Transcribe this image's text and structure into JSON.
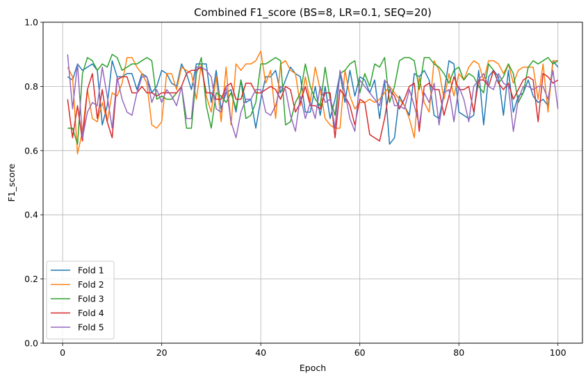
{
  "chart_data": {
    "type": "line",
    "title": "Combined F1_score (BS=8, LR=0.1, SEQ=20)",
    "xlabel": "Epoch",
    "ylabel": "F1_score",
    "xlim": [
      -3.95,
      104.95
    ],
    "ylim": [
      0.0,
      1.0
    ],
    "xticks": [
      0,
      20,
      40,
      60,
      80,
      100
    ],
    "yticks": [
      0.0,
      0.2,
      0.4,
      0.6,
      0.8,
      1.0
    ],
    "xtick_labels": [
      "0",
      "20",
      "40",
      "60",
      "80",
      "100"
    ],
    "ytick_labels": [
      "0.0",
      "0.2",
      "0.4",
      "0.6",
      "0.8",
      "1.0"
    ],
    "grid": true,
    "legend_position": "lower-left",
    "x": [
      1,
      2,
      3,
      4,
      5,
      6,
      7,
      8,
      9,
      10,
      11,
      12,
      13,
      14,
      15,
      16,
      17,
      18,
      19,
      20,
      21,
      22,
      23,
      24,
      25,
      26,
      27,
      28,
      29,
      30,
      31,
      32,
      33,
      34,
      35,
      36,
      37,
      38,
      39,
      40,
      41,
      42,
      43,
      44,
      45,
      46,
      47,
      48,
      49,
      50,
      51,
      52,
      53,
      54,
      55,
      56,
      57,
      58,
      59,
      60,
      61,
      62,
      63,
      64,
      65,
      66,
      67,
      68,
      69,
      70,
      71,
      72,
      73,
      74,
      75,
      76,
      77,
      78,
      79,
      80,
      81,
      82,
      83,
      84,
      85,
      86,
      87,
      88,
      89,
      90,
      91,
      92,
      93,
      94,
      95,
      96,
      97,
      98,
      99,
      100
    ],
    "series": [
      {
        "name": "Fold 1",
        "color": "#1f77b4",
        "values": [
          0.83,
          0.82,
          0.87,
          0.85,
          0.86,
          0.87,
          0.85,
          0.68,
          0.74,
          0.88,
          0.83,
          0.83,
          0.84,
          0.84,
          0.79,
          0.84,
          0.83,
          0.78,
          0.8,
          0.85,
          0.84,
          0.81,
          0.8,
          0.87,
          0.84,
          0.79,
          0.87,
          0.87,
          0.87,
          0.75,
          0.85,
          0.73,
          0.78,
          0.79,
          0.72,
          0.82,
          0.75,
          0.76,
          0.67,
          0.76,
          0.83,
          0.83,
          0.85,
          0.78,
          0.82,
          0.86,
          0.84,
          0.83,
          0.72,
          0.72,
          0.8,
          0.71,
          0.8,
          0.7,
          0.76,
          0.84,
          0.75,
          0.85,
          0.77,
          0.83,
          0.82,
          0.78,
          0.82,
          0.7,
          0.82,
          0.62,
          0.64,
          0.77,
          0.74,
          0.71,
          0.84,
          0.83,
          0.85,
          0.82,
          0.71,
          0.7,
          0.78,
          0.88,
          0.87,
          0.72,
          0.71,
          0.7,
          0.71,
          0.85,
          0.68,
          0.83,
          0.85,
          0.83,
          0.71,
          0.85,
          0.72,
          0.77,
          0.78,
          0.82,
          0.77,
          0.75,
          0.76,
          0.74,
          0.88,
          0.86
        ]
      },
      {
        "name": "Fold 2",
        "color": "#ff7f0e",
        "values": [
          0.86,
          0.83,
          0.59,
          0.66,
          0.79,
          0.7,
          0.69,
          0.75,
          0.69,
          0.78,
          0.77,
          0.81,
          0.89,
          0.89,
          0.86,
          0.84,
          0.81,
          0.68,
          0.67,
          0.69,
          0.84,
          0.84,
          0.79,
          0.86,
          0.85,
          0.84,
          0.76,
          0.87,
          0.77,
          0.72,
          0.83,
          0.69,
          0.86,
          0.68,
          0.87,
          0.85,
          0.87,
          0.87,
          0.88,
          0.91,
          0.81,
          0.85,
          0.7,
          0.87,
          0.88,
          0.85,
          0.84,
          0.74,
          0.83,
          0.75,
          0.86,
          0.79,
          0.7,
          0.68,
          0.67,
          0.67,
          0.85,
          0.77,
          0.73,
          0.75,
          0.75,
          0.76,
          0.75,
          0.76,
          0.78,
          0.8,
          0.78,
          0.76,
          0.74,
          0.7,
          0.64,
          0.83,
          0.75,
          0.72,
          0.88,
          0.85,
          0.76,
          0.84,
          0.77,
          0.84,
          0.82,
          0.86,
          0.88,
          0.87,
          0.82,
          0.88,
          0.88,
          0.87,
          0.84,
          0.87,
          0.81,
          0.85,
          0.86,
          0.86,
          0.86,
          0.76,
          0.87,
          0.72,
          0.88,
          0.88
        ]
      },
      {
        "name": "Fold 3",
        "color": "#2ca02c",
        "values": [
          0.67,
          0.67,
          0.62,
          0.84,
          0.89,
          0.88,
          0.85,
          0.87,
          0.86,
          0.9,
          0.89,
          0.85,
          0.86,
          0.87,
          0.87,
          0.88,
          0.89,
          0.88,
          0.76,
          0.77,
          0.76,
          0.76,
          0.78,
          0.8,
          0.67,
          0.67,
          0.84,
          0.89,
          0.74,
          0.67,
          0.78,
          0.77,
          0.75,
          0.78,
          0.73,
          0.82,
          0.7,
          0.71,
          0.75,
          0.87,
          0.87,
          0.88,
          0.89,
          0.88,
          0.68,
          0.69,
          0.75,
          0.78,
          0.87,
          0.8,
          0.76,
          0.74,
          0.86,
          0.76,
          0.71,
          0.84,
          0.85,
          0.87,
          0.88,
          0.78,
          0.84,
          0.8,
          0.87,
          0.86,
          0.89,
          0.75,
          0.8,
          0.88,
          0.89,
          0.89,
          0.88,
          0.79,
          0.89,
          0.89,
          0.87,
          0.86,
          0.84,
          0.81,
          0.85,
          0.86,
          0.82,
          0.84,
          0.83,
          0.8,
          0.78,
          0.87,
          0.85,
          0.81,
          0.83,
          0.87,
          0.84,
          0.75,
          0.78,
          0.86,
          0.88,
          0.87,
          0.88,
          0.89,
          0.87,
          0.88
        ]
      },
      {
        "name": "Fold 4",
        "color": "#d62728",
        "values": [
          0.76,
          0.64,
          0.74,
          0.63,
          0.79,
          0.84,
          0.7,
          0.79,
          0.69,
          0.64,
          0.82,
          0.83,
          0.83,
          0.78,
          0.78,
          0.8,
          0.78,
          0.78,
          0.77,
          0.78,
          0.78,
          0.78,
          0.78,
          0.8,
          0.84,
          0.85,
          0.85,
          0.86,
          0.78,
          0.78,
          0.76,
          0.76,
          0.8,
          0.81,
          0.76,
          0.76,
          0.81,
          0.81,
          0.78,
          0.78,
          0.79,
          0.8,
          0.79,
          0.76,
          0.8,
          0.79,
          0.72,
          0.75,
          0.8,
          0.74,
          0.74,
          0.73,
          0.78,
          0.78,
          0.64,
          0.79,
          0.77,
          0.74,
          0.68,
          0.76,
          0.75,
          0.65,
          0.64,
          0.63,
          0.7,
          0.79,
          0.77,
          0.73,
          0.76,
          0.8,
          0.81,
          0.66,
          0.8,
          0.81,
          0.79,
          0.79,
          0.71,
          0.77,
          0.83,
          0.79,
          0.79,
          0.8,
          0.72,
          0.82,
          0.82,
          0.8,
          0.85,
          0.81,
          0.79,
          0.81,
          0.76,
          0.79,
          0.82,
          0.83,
          0.82,
          0.69,
          0.84,
          0.83,
          0.81,
          0.82
        ]
      },
      {
        "name": "Fold 5",
        "color": "#9467bd",
        "values": [
          0.9,
          0.73,
          0.87,
          0.64,
          0.72,
          0.75,
          0.74,
          0.86,
          0.77,
          0.67,
          0.83,
          0.76,
          0.72,
          0.71,
          0.78,
          0.83,
          0.83,
          0.75,
          0.79,
          0.75,
          0.79,
          0.77,
          0.74,
          0.8,
          0.7,
          0.7,
          0.86,
          0.86,
          0.85,
          0.83,
          0.73,
          0.72,
          0.8,
          0.69,
          0.64,
          0.72,
          0.76,
          0.76,
          0.79,
          0.79,
          0.72,
          0.71,
          0.74,
          0.8,
          0.79,
          0.71,
          0.66,
          0.77,
          0.7,
          0.75,
          0.7,
          0.8,
          0.75,
          0.76,
          0.67,
          0.85,
          0.78,
          0.7,
          0.66,
          0.82,
          0.8,
          0.78,
          0.76,
          0.74,
          0.82,
          0.8,
          0.74,
          0.74,
          0.73,
          0.79,
          0.74,
          0.68,
          0.78,
          0.75,
          0.81,
          0.68,
          0.78,
          0.79,
          0.69,
          0.8,
          0.76,
          0.69,
          0.8,
          0.82,
          0.84,
          0.8,
          0.79,
          0.84,
          0.81,
          0.8,
          0.66,
          0.76,
          0.8,
          0.8,
          0.79,
          0.8,
          0.8,
          0.76,
          0.85,
          0.73
        ]
      }
    ]
  }
}
